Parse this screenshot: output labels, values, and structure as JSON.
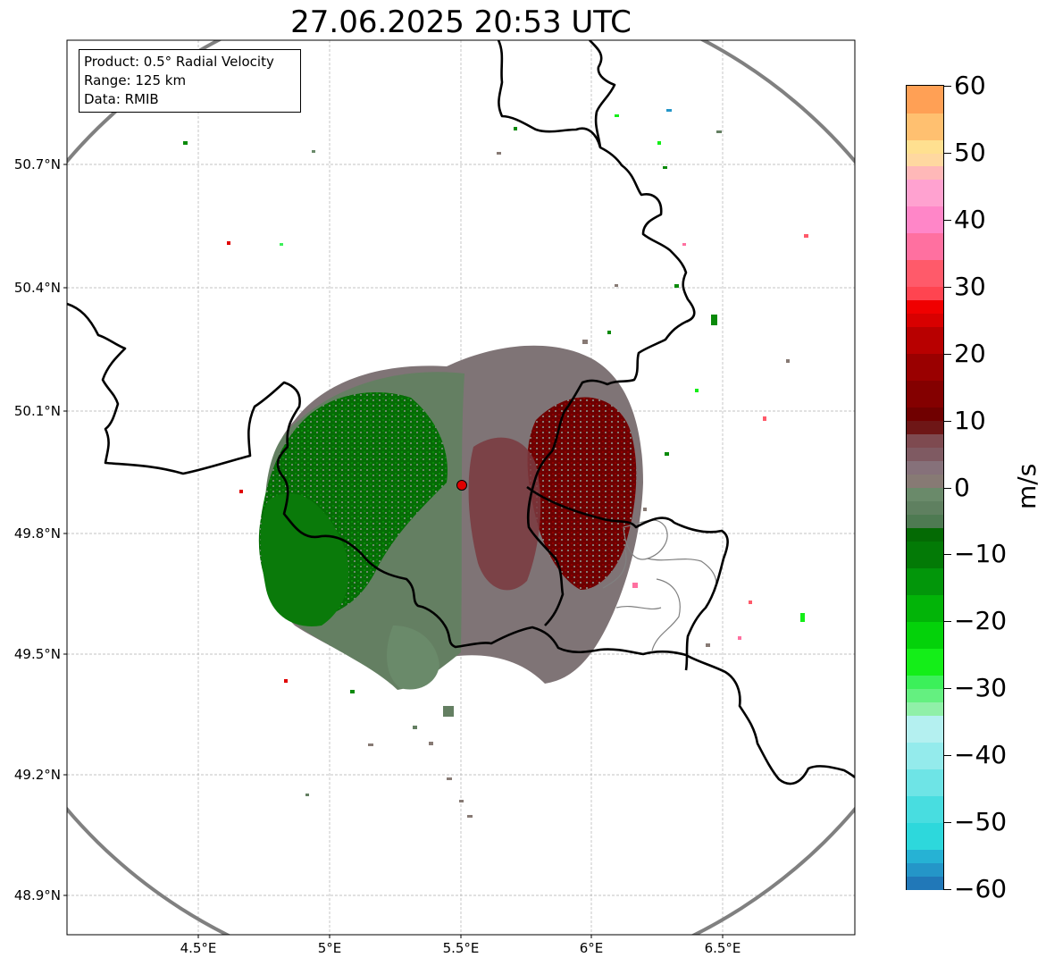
{
  "title": "27.06.2025 20:53 UTC",
  "info": {
    "product": "Product: 0.5° Radial Velocity",
    "range": "Range: 125 km",
    "data": "Data: RMIB"
  },
  "map": {
    "lon_range": [
      4.0,
      7.0
    ],
    "lat_range": [
      48.8,
      50.99
    ],
    "radar_site": {
      "lon": 5.505,
      "lat": 49.914
    },
    "range_km": 125,
    "x_ticks": [
      "4.5°E",
      "5°E",
      "5.5°E",
      "6°E",
      "6.5°E"
    ],
    "x_tick_values": [
      4.5,
      5.0,
      5.5,
      6.0,
      6.5
    ],
    "y_ticks": [
      "50.7°N",
      "50.4°N",
      "50.1°N",
      "49.8°N",
      "49.5°N",
      "49.2°N",
      "48.9°N"
    ],
    "y_tick_values": [
      50.7,
      50.4,
      50.1,
      49.8,
      49.5,
      49.2,
      48.9
    ],
    "colors": {
      "border": "#000000",
      "range_ring": "#808080",
      "grid": "#b0b0b0",
      "site_marker": "#e00000"
    }
  },
  "colorbar": {
    "unit": "m/s",
    "min": -60,
    "max": 60,
    "labels": [
      "60",
      "50",
      "40",
      "30",
      "20",
      "10",
      "0",
      "−10",
      "−20",
      "−30",
      "−40",
      "−50",
      "−60"
    ],
    "label_values": [
      60,
      50,
      40,
      30,
      20,
      10,
      0,
      -10,
      -20,
      -30,
      -40,
      -50,
      -60
    ],
    "segments": [
      {
        "from": -60,
        "to": -58,
        "color": "#2178b8"
      },
      {
        "from": -58,
        "to": -56,
        "color": "#2496c8"
      },
      {
        "from": -56,
        "to": -54,
        "color": "#26b2d4"
      },
      {
        "from": -54,
        "to": -50,
        "color": "#2dd8dc"
      },
      {
        "from": -50,
        "to": -46,
        "color": "#48dde0"
      },
      {
        "from": -46,
        "to": -42,
        "color": "#6ee4e6"
      },
      {
        "from": -42,
        "to": -38,
        "color": "#94ebec"
      },
      {
        "from": -38,
        "to": -34,
        "color": "#b4f0f0"
      },
      {
        "from": -34,
        "to": -32,
        "color": "#90f0a8"
      },
      {
        "from": -32,
        "to": -30,
        "color": "#64f080"
      },
      {
        "from": -30,
        "to": -28,
        "color": "#3cf05a"
      },
      {
        "from": -28,
        "to": -24,
        "color": "#14ee18"
      },
      {
        "from": -24,
        "to": -20,
        "color": "#04d20a"
      },
      {
        "from": -20,
        "to": -16,
        "color": "#02b408"
      },
      {
        "from": -16,
        "to": -12,
        "color": "#02960a"
      },
      {
        "from": -12,
        "to": -8,
        "color": "#037a06"
      },
      {
        "from": -8,
        "to": -6,
        "color": "#046a04"
      },
      {
        "from": -6,
        "to": -4,
        "color": "#4e7a52"
      },
      {
        "from": -4,
        "to": -2,
        "color": "#5f8060"
      },
      {
        "from": -2,
        "to": 0,
        "color": "#6a8a6a"
      },
      {
        "from": 0,
        "to": 2,
        "color": "#877a74"
      },
      {
        "from": 2,
        "to": 4,
        "color": "#86717a"
      },
      {
        "from": 4,
        "to": 6,
        "color": "#7f5a62"
      },
      {
        "from": 6,
        "to": 8,
        "color": "#7e4a50"
      },
      {
        "from": 8,
        "to": 10,
        "color": "#6e1616"
      },
      {
        "from": 10,
        "to": 12,
        "color": "#700000"
      },
      {
        "from": 12,
        "to": 16,
        "color": "#840000"
      },
      {
        "from": 16,
        "to": 20,
        "color": "#9a0000"
      },
      {
        "from": 20,
        "to": 24,
        "color": "#b80000"
      },
      {
        "from": 24,
        "to": 26,
        "color": "#d80000"
      },
      {
        "from": 26,
        "to": 28,
        "color": "#f00000"
      },
      {
        "from": 28,
        "to": 30,
        "color": "#ff4450"
      },
      {
        "from": 30,
        "to": 34,
        "color": "#ff5a6a"
      },
      {
        "from": 34,
        "to": 38,
        "color": "#ff70a0"
      },
      {
        "from": 38,
        "to": 42,
        "color": "#ff86c8"
      },
      {
        "from": 42,
        "to": 46,
        "color": "#ffa2d0"
      },
      {
        "from": 46,
        "to": 48,
        "color": "#ffb8b8"
      },
      {
        "from": 48,
        "to": 50,
        "color": "#ffd8a0"
      },
      {
        "from": 50,
        "to": 52,
        "color": "#ffe090"
      },
      {
        "from": 52,
        "to": 56,
        "color": "#ffc070"
      },
      {
        "from": 56,
        "to": 60,
        "color": "#ffa055"
      }
    ]
  }
}
